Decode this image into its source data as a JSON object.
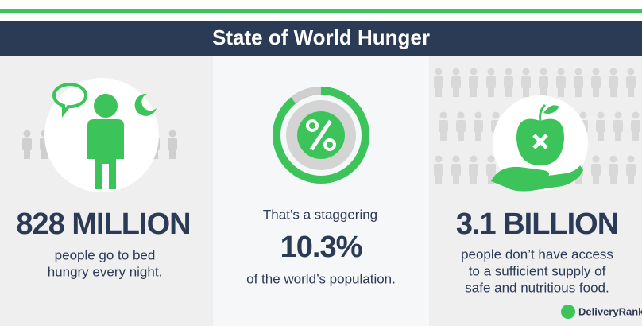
{
  "header": {
    "title": "State of World Hunger"
  },
  "panels": [
    {
      "headline": "828 MILLION",
      "lines": [
        "people go to bed",
        "hungry every night."
      ]
    },
    {
      "intro": "That’s a staggering",
      "headline": "10.3%",
      "lines": [
        "of the world’s population."
      ]
    },
    {
      "headline": "3.1 BILLION",
      "lines": [
        "people don’t have access",
        "to a sufficient supply of",
        "safe and nutritious food."
      ]
    }
  ],
  "footer": {
    "brand": "DeliveryRank"
  }
}
